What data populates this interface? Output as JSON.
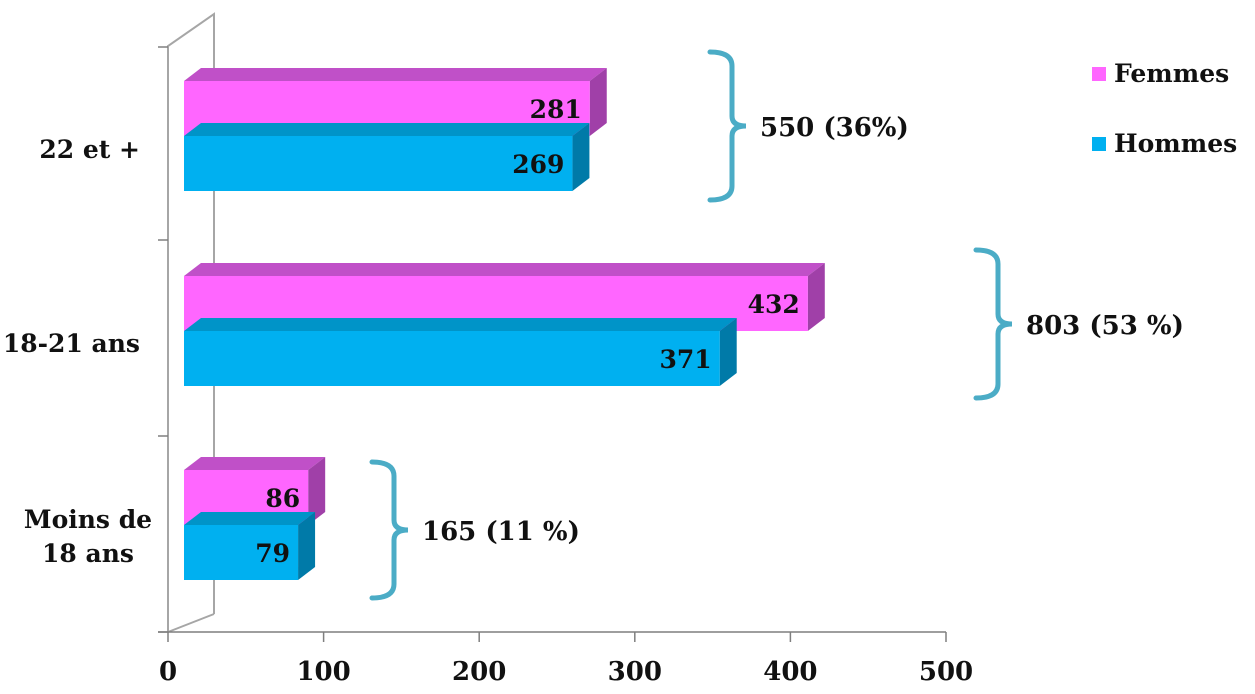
{
  "chart_data": {
    "type": "bar",
    "orientation": "horizontal",
    "three_d": true,
    "categories": [
      "22 et +",
      "18-21 ans",
      "Moins de 18 ans"
    ],
    "category_lines": [
      [
        "22 et +"
      ],
      [
        "18-21 ans"
      ],
      [
        "Moins de",
        "18 ans"
      ]
    ],
    "series": [
      {
        "name": "Femmes",
        "values": [
          281,
          432,
          86
        ],
        "color": "#ff66ff",
        "top_color": "#c050c8",
        "side_color": "#a040a8"
      },
      {
        "name": "Hommes",
        "values": [
          269,
          371,
          79
        ],
        "color": "#00b0f0",
        "top_color": "#0094c8",
        "side_color": "#007aa8"
      }
    ],
    "group_totals": [
      "550 (36%)",
      "803 (53 %)",
      "165 (11 %)"
    ],
    "xlim": [
      0,
      500
    ],
    "xticks": [
      0,
      100,
      200,
      300,
      400,
      500
    ],
    "bracket_color": "#4bacc6",
    "legend": {
      "position": "top-right"
    },
    "grid": false,
    "title": "",
    "xlabel": "",
    "ylabel": ""
  }
}
